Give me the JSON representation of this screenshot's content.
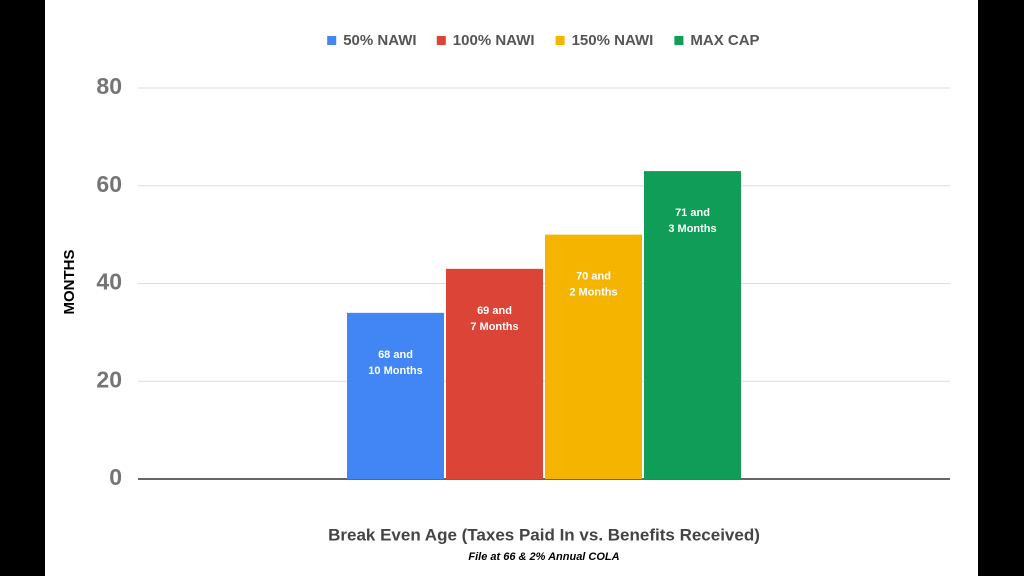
{
  "chart_data": {
    "type": "bar",
    "title": "Break Even Age (Taxes Paid In vs. Benefits Received)",
    "subtitle": "File at 66 & 2% Annual COLA",
    "ylabel": "MONTHS",
    "categories": [
      null
    ],
    "series": [
      {
        "name": "50% NAWI",
        "color": "#4285f4",
        "values": [
          34
        ],
        "value_labels": [
          "68 and\n10 Months"
        ]
      },
      {
        "name": "100% NAWI",
        "color": "#db4437",
        "values": [
          43
        ],
        "value_labels": [
          "69 and\n7 Months"
        ]
      },
      {
        "name": "150% NAWI",
        "color": "#f4b400",
        "values": [
          50
        ],
        "value_labels": [
          "70 and\n2 Months"
        ]
      },
      {
        "name": "MAX CAP",
        "color": "#0f9d58",
        "values": [
          63
        ],
        "value_labels": [
          "71 and\n3 Months"
        ]
      }
    ],
    "ylim": [
      0,
      80
    ],
    "yticks": [
      0,
      20,
      40,
      60,
      80
    ],
    "grid": true,
    "legend": "top"
  }
}
